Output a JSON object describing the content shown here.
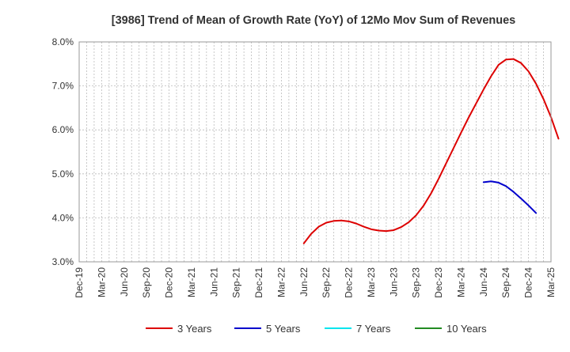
{
  "chart_data": {
    "type": "line",
    "title": "[3986]  Trend of Mean of Growth Rate (YoY) of 12Mo Mov Sum of Revenues",
    "xlabel": "",
    "ylabel": "",
    "ylim": [
      3.0,
      8.0
    ],
    "yticks": [
      "3.0%",
      "4.0%",
      "5.0%",
      "6.0%",
      "7.0%",
      "8.0%"
    ],
    "grid": true,
    "legend_position": "bottom",
    "x_tick_labels": [
      "Dec-19",
      "Mar-20",
      "Jun-20",
      "Sep-20",
      "Dec-20",
      "Mar-21",
      "Jun-21",
      "Sep-21",
      "Dec-21",
      "Mar-22",
      "Jun-22",
      "Sep-22",
      "Dec-22",
      "Mar-23",
      "Jun-23",
      "Sep-23",
      "Dec-23",
      "Mar-24",
      "Jun-24",
      "Sep-24",
      "Dec-24",
      "Mar-25"
    ],
    "x_start": "Dec-19",
    "x_end": "Mar-25",
    "series": [
      {
        "name": "3 Years",
        "color": "#dd0000",
        "start_month_index": 30,
        "values": [
          3.42,
          3.64,
          3.8,
          3.89,
          3.93,
          3.94,
          3.92,
          3.87,
          3.8,
          3.74,
          3.71,
          3.7,
          3.72,
          3.79,
          3.9,
          4.06,
          4.28,
          4.56,
          4.89,
          5.24,
          5.59,
          5.94,
          6.28,
          6.6,
          6.92,
          7.22,
          7.48,
          7.6,
          7.61,
          7.52,
          7.33,
          7.05,
          6.7,
          6.29,
          5.8
        ]
      },
      {
        "name": "5 Years",
        "color": "#0000cc",
        "start_month_index": 54,
        "values": [
          4.81,
          4.83,
          4.8,
          4.72,
          4.59,
          4.44,
          4.28,
          4.11
        ]
      },
      {
        "name": "7 Years",
        "color": "#00e5ee",
        "start_month_index": null,
        "values": []
      },
      {
        "name": "10 Years",
        "color": "#228b22",
        "start_month_index": null,
        "values": []
      }
    ]
  }
}
